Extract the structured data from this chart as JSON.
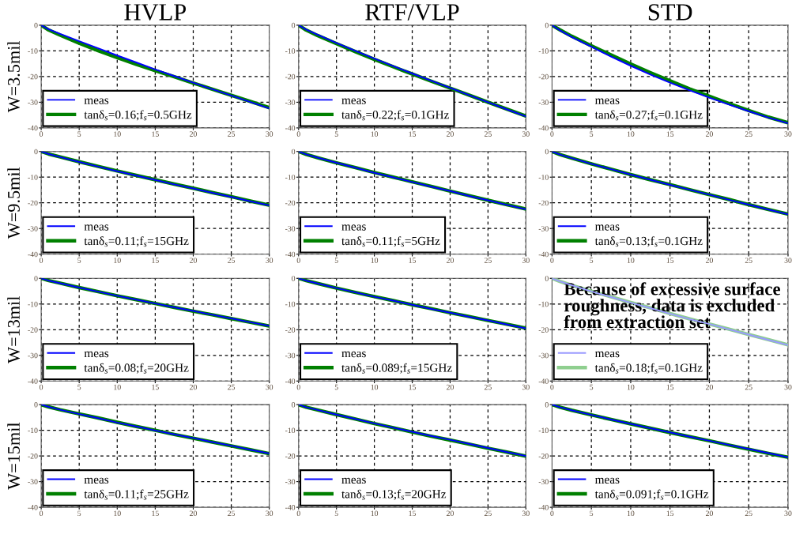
{
  "chart_data": [
    {
      "type": "line",
      "title": "HVLP",
      "ylabel": "W=3.5mil",
      "x": [
        0,
        1,
        2.5,
        5,
        7.5,
        10,
        12.5,
        15,
        17.5,
        20,
        22.5,
        25,
        27.5,
        30
      ],
      "xlim": [
        0,
        30
      ],
      "ylim": [
        -40,
        0
      ],
      "xticks": [
        0,
        5,
        10,
        15,
        20,
        25,
        30
      ],
      "yticks": [
        -40,
        -30,
        -20,
        -10,
        0
      ],
      "grid": true,
      "legend": "bottom left",
      "line_style": "solid",
      "series": [
        {
          "name": "meas",
          "color": "#0000ff",
          "values": [
            0,
            -1.6,
            -3.4,
            -6.2,
            -9.0,
            -11.8,
            -14.5,
            -17.2,
            -19.8,
            -22.4,
            -24.9,
            -27.4,
            -29.9,
            -32.4
          ]
        },
        {
          "name": "tanδ$_{s}$=0.16;f$_{s}$=0.5GHz",
          "color": "#008000",
          "values": [
            0,
            -1.9,
            -3.9,
            -7.0,
            -9.9,
            -12.6,
            -15.2,
            -17.7,
            -20.1,
            -22.5,
            -24.9,
            -27.3,
            -29.7,
            -32.1
          ]
        }
      ]
    },
    {
      "type": "line",
      "title": "RTF/VLP",
      "x": [
        0,
        1,
        2.5,
        5,
        7.5,
        10,
        12.5,
        15,
        17.5,
        20,
        22.5,
        25,
        27.5,
        30
      ],
      "xlim": [
        0,
        30
      ],
      "ylim": [
        -40,
        0
      ],
      "xticks": [
        0,
        5,
        10,
        15,
        20,
        25,
        30
      ],
      "yticks": [
        -40,
        -30,
        -20,
        -10,
        0
      ],
      "grid": true,
      "legend": "bottom left",
      "line_style": "solid",
      "series": [
        {
          "name": "meas",
          "color": "#0000ff",
          "values": [
            0,
            -1.7,
            -3.7,
            -6.9,
            -10.0,
            -13.0,
            -15.9,
            -18.8,
            -21.6,
            -24.4,
            -27.2,
            -30.0,
            -32.8,
            -35.5
          ]
        },
        {
          "name": "tanδ$_{s}$=0.22;f$_{s}$=0.1GHz",
          "color": "#008000",
          "values": [
            0,
            -1.9,
            -4.0,
            -7.2,
            -10.3,
            -13.3,
            -16.2,
            -19.0,
            -21.8,
            -24.5,
            -27.2,
            -30.0,
            -32.7,
            -35.4
          ]
        }
      ]
    },
    {
      "type": "line",
      "title": "STD",
      "x": [
        0,
        1,
        2.5,
        5,
        7.5,
        10,
        12.5,
        15,
        17.5,
        20,
        22.5,
        25,
        27.5,
        30
      ],
      "xlim": [
        0,
        30
      ],
      "ylim": [
        -40,
        0
      ],
      "xticks": [
        0,
        5,
        10,
        15,
        20,
        25,
        30
      ],
      "yticks": [
        -40,
        -30,
        -20,
        -10,
        0
      ],
      "grid": true,
      "legend": "bottom left",
      "line_style": "solid",
      "series": [
        {
          "name": "meas",
          "color": "#0000ff",
          "values": [
            0,
            -2.0,
            -4.6,
            -8.4,
            -12.2,
            -15.8,
            -19.2,
            -22.4,
            -25.4,
            -28.2,
            -30.9,
            -33.5,
            -36.0,
            -38.2
          ]
        },
        {
          "name": "tanδ$_{s}$=0.27;f$_{s}$=0.1GHz",
          "color": "#008000",
          "values": [
            0,
            -1.8,
            -4.3,
            -8.0,
            -11.6,
            -15.1,
            -18.5,
            -21.7,
            -24.8,
            -27.7,
            -30.5,
            -33.2,
            -35.8,
            -38.0
          ]
        }
      ]
    },
    {
      "type": "line",
      "ylabel": "W=9.5mil",
      "x": [
        0,
        1,
        2.5,
        5,
        7.5,
        10,
        12.5,
        15,
        17.5,
        20,
        22.5,
        25,
        27.5,
        30
      ],
      "xlim": [
        0,
        30
      ],
      "ylim": [
        -40,
        0
      ],
      "xticks": [
        0,
        5,
        10,
        15,
        20,
        25,
        30
      ],
      "yticks": [
        -40,
        -30,
        -20,
        -10,
        0
      ],
      "grid": true,
      "legend": "bottom left",
      "line_style": "solid",
      "series": [
        {
          "name": "meas",
          "color": "#0000ff",
          "values": [
            0,
            -1.0,
            -2.2,
            -4.1,
            -5.9,
            -7.7,
            -9.4,
            -11.1,
            -12.8,
            -14.4,
            -16.1,
            -17.7,
            -19.4,
            -21.0
          ]
        },
        {
          "name": "tanδ$_{s}$=0.11;f$_{s}$=15GHz",
          "color": "#008000",
          "values": [
            0,
            -1.0,
            -2.1,
            -4.0,
            -5.8,
            -7.6,
            -9.3,
            -11.0,
            -12.7,
            -14.3,
            -16.0,
            -17.6,
            -19.3,
            -20.9
          ]
        }
      ]
    },
    {
      "type": "line",
      "x": [
        0,
        1,
        2.5,
        5,
        7.5,
        10,
        12.5,
        15,
        17.5,
        20,
        22.5,
        25,
        27.5,
        30
      ],
      "xlim": [
        0,
        30
      ],
      "ylim": [
        -40,
        0
      ],
      "xticks": [
        0,
        5,
        10,
        15,
        20,
        25,
        30
      ],
      "yticks": [
        -40,
        -30,
        -20,
        -10,
        0
      ],
      "grid": true,
      "legend": "bottom left",
      "line_style": "solid",
      "series": [
        {
          "name": "meas",
          "color": "#0000ff",
          "values": [
            0,
            -1.1,
            -2.4,
            -4.4,
            -6.3,
            -8.3,
            -10.1,
            -11.9,
            -13.7,
            -15.4,
            -17.3,
            -19.0,
            -20.8,
            -22.5
          ]
        },
        {
          "name": "tanδ$_{s}$=0.11;f$_{s}$=5GHz",
          "color": "#008000",
          "values": [
            0,
            -1.1,
            -2.4,
            -4.4,
            -6.3,
            -8.2,
            -10.0,
            -11.8,
            -13.6,
            -15.4,
            -17.2,
            -19.0,
            -20.7,
            -22.4
          ]
        }
      ]
    },
    {
      "type": "line",
      "x": [
        0,
        1,
        2.5,
        5,
        7.5,
        10,
        12.5,
        15,
        17.5,
        20,
        22.5,
        25,
        27.5,
        30
      ],
      "xlim": [
        0,
        30
      ],
      "ylim": [
        -40,
        0
      ],
      "xticks": [
        0,
        5,
        10,
        15,
        20,
        25,
        30
      ],
      "yticks": [
        -40,
        -30,
        -20,
        -10,
        0
      ],
      "grid": true,
      "legend": "bottom left",
      "line_style": "solid",
      "series": [
        {
          "name": "meas",
          "color": "#0000ff",
          "values": [
            0,
            -1.2,
            -2.6,
            -4.8,
            -6.9,
            -9.0,
            -11.0,
            -13.0,
            -14.9,
            -16.8,
            -18.8,
            -20.7,
            -22.6,
            -24.5
          ]
        },
        {
          "name": "tanδ$_{s}$=0.13;f$_{s}$=0.1GHz",
          "color": "#008000",
          "values": [
            0,
            -1.2,
            -2.6,
            -4.8,
            -6.9,
            -9.0,
            -11.0,
            -12.9,
            -14.9,
            -16.8,
            -18.7,
            -20.7,
            -22.6,
            -24.4
          ]
        }
      ]
    },
    {
      "type": "line",
      "ylabel": "W=13mil",
      "x": [
        0,
        1,
        2.5,
        5,
        7.5,
        10,
        12.5,
        15,
        17.5,
        20,
        22.5,
        25,
        27.5,
        30
      ],
      "xlim": [
        0,
        30
      ],
      "ylim": [
        -40,
        0
      ],
      "xticks": [
        0,
        5,
        10,
        15,
        20,
        25,
        30
      ],
      "yticks": [
        -40,
        -30,
        -20,
        -10,
        0
      ],
      "grid": true,
      "legend": "bottom left",
      "line_style": "solid",
      "series": [
        {
          "name": "meas",
          "color": "#0000ff",
          "values": [
            0,
            -0.9,
            -1.9,
            -3.6,
            -5.2,
            -6.8,
            -8.3,
            -9.8,
            -11.3,
            -12.7,
            -14.2,
            -15.6,
            -17.1,
            -18.5
          ]
        },
        {
          "name": "tanδ$_{s}$=0.08;f$_{s}$=20GHz",
          "color": "#008000",
          "values": [
            0,
            -0.9,
            -1.9,
            -3.6,
            -5.2,
            -6.8,
            -8.3,
            -9.8,
            -11.3,
            -12.8,
            -14.2,
            -15.7,
            -17.1,
            -18.6
          ]
        }
      ]
    },
    {
      "type": "line",
      "x": [
        0,
        1,
        2.5,
        5,
        7.5,
        10,
        12.5,
        15,
        17.5,
        20,
        22.5,
        25,
        27.5,
        30
      ],
      "xlim": [
        0,
        30
      ],
      "ylim": [
        -40,
        0
      ],
      "xticks": [
        0,
        5,
        10,
        15,
        20,
        25,
        30
      ],
      "yticks": [
        -40,
        -30,
        -20,
        -10,
        0
      ],
      "grid": true,
      "legend": "bottom left",
      "line_style": "solid",
      "series": [
        {
          "name": "meas",
          "color": "#0000ff",
          "values": [
            0,
            -0.9,
            -2.0,
            -3.8,
            -5.5,
            -7.2,
            -8.7,
            -10.3,
            -11.9,
            -13.4,
            -15.0,
            -16.4,
            -18.0,
            -19.5
          ]
        },
        {
          "name": "tanδ$_{s}$=0.089;f$_{s}$=15GHz",
          "color": "#008000",
          "values": [
            0,
            -0.9,
            -2.0,
            -3.8,
            -5.5,
            -7.1,
            -8.7,
            -10.3,
            -11.8,
            -13.4,
            -14.9,
            -16.4,
            -17.9,
            -19.4
          ]
        }
      ]
    },
    {
      "type": "line",
      "annotations": [
        "Because of excessive surface roughness, data is excluded from extraction set"
      ],
      "x": [
        0,
        1,
        2.5,
        5,
        7.5,
        10,
        12.5,
        15,
        17.5,
        20,
        22.5,
        25,
        27.5,
        30
      ],
      "xlim": [
        0,
        30
      ],
      "ylim": [
        -40,
        0
      ],
      "xticks": [
        0,
        5,
        10,
        15,
        20,
        25,
        30
      ],
      "yticks": [
        -40,
        -30,
        -20,
        -10,
        0
      ],
      "grid": true,
      "legend": "bottom left",
      "line_style": "solid",
      "series": [
        {
          "name": "meas",
          "color": "#9a9aff",
          "values": [
            0,
            -1.2,
            -2.7,
            -5.1,
            -7.3,
            -9.5,
            -11.6,
            -13.8,
            -15.9,
            -17.8,
            -19.9,
            -21.9,
            -24.0,
            -26.0
          ]
        },
        {
          "name": "tanδ$_{s}$=0.18;f$_{s}$=0.1GHz",
          "color": "#8fcf8f",
          "values": [
            0,
            -1.2,
            -2.7,
            -5.0,
            -7.2,
            -9.4,
            -11.5,
            -13.7,
            -15.8,
            -17.8,
            -19.8,
            -21.9,
            -23.9,
            -25.9
          ]
        }
      ]
    },
    {
      "type": "line",
      "ylabel": "W=15mil",
      "x": [
        0,
        1,
        2.5,
        5,
        7.5,
        10,
        12.5,
        15,
        17.5,
        20,
        22.5,
        25,
        27.5,
        30
      ],
      "xlim": [
        0,
        30
      ],
      "ylim": [
        -40,
        0
      ],
      "xticks": [
        0,
        5,
        10,
        15,
        20,
        25,
        30
      ],
      "yticks": [
        -40,
        -30,
        -20,
        -10,
        0
      ],
      "grid": true,
      "legend": "bottom left",
      "line_style": "solid",
      "series": [
        {
          "name": "meas",
          "color": "#0000ff",
          "values": [
            0,
            -0.9,
            -2.0,
            -3.7,
            -5.3,
            -7.0,
            -8.5,
            -10.1,
            -11.6,
            -13.0,
            -14.6,
            -16.0,
            -17.6,
            -19.0
          ]
        },
        {
          "name": "tanδ$_{s}$=0.11;f$_{s}$=25GHz",
          "color": "#008000",
          "values": [
            0,
            -0.9,
            -2.0,
            -3.6,
            -5.2,
            -6.9,
            -8.5,
            -10.0,
            -11.6,
            -13.1,
            -14.6,
            -16.1,
            -17.6,
            -19.1
          ]
        }
      ]
    },
    {
      "type": "line",
      "x": [
        0,
        1,
        2.5,
        5,
        7.5,
        10,
        12.5,
        15,
        17.5,
        20,
        22.5,
        25,
        27.5,
        30
      ],
      "xlim": [
        0,
        30
      ],
      "ylim": [
        -40,
        0
      ],
      "xticks": [
        0,
        5,
        10,
        15,
        20,
        25,
        30
      ],
      "yticks": [
        -40,
        -30,
        -20,
        -10,
        0
      ],
      "grid": true,
      "legend": "bottom left",
      "line_style": "solid",
      "series": [
        {
          "name": "meas",
          "color": "#0000ff",
          "values": [
            0,
            -1.0,
            -2.1,
            -3.9,
            -5.6,
            -7.3,
            -9.0,
            -10.6,
            -12.2,
            -13.7,
            -15.3,
            -16.9,
            -18.5,
            -20.0
          ]
        },
        {
          "name": "tanδ$_{s}$=0.13;f$_{s}$=20GHz",
          "color": "#008000",
          "values": [
            0,
            -1.0,
            -2.1,
            -3.9,
            -5.6,
            -7.4,
            -9.0,
            -10.7,
            -12.3,
            -13.8,
            -15.4,
            -17.0,
            -18.5,
            -20.1
          ]
        }
      ]
    },
    {
      "type": "line",
      "x": [
        0,
        1,
        2.5,
        5,
        7.5,
        10,
        12.5,
        15,
        17.5,
        20,
        22.5,
        25,
        27.5,
        30
      ],
      "xlim": [
        0,
        30
      ],
      "ylim": [
        -40,
        0
      ],
      "xticks": [
        0,
        5,
        10,
        15,
        20,
        25,
        30
      ],
      "yticks": [
        -40,
        -30,
        -20,
        -10,
        0
      ],
      "grid": true,
      "legend": "bottom left",
      "line_style": "solid",
      "series": [
        {
          "name": "meas",
          "color": "#0000ff",
          "values": [
            0,
            -1.0,
            -2.2,
            -4.0,
            -5.8,
            -7.5,
            -9.2,
            -10.8,
            -12.5,
            -14.1,
            -15.7,
            -17.3,
            -18.9,
            -20.5
          ]
        },
        {
          "name": "tanδ$_{s}$=0.091;f$_{s}$=0.1GHz",
          "color": "#008000",
          "values": [
            0,
            -1.0,
            -2.2,
            -4.0,
            -5.8,
            -7.5,
            -9.2,
            -10.9,
            -12.5,
            -14.1,
            -15.8,
            -17.4,
            -19.0,
            -20.5
          ]
        }
      ]
    }
  ]
}
